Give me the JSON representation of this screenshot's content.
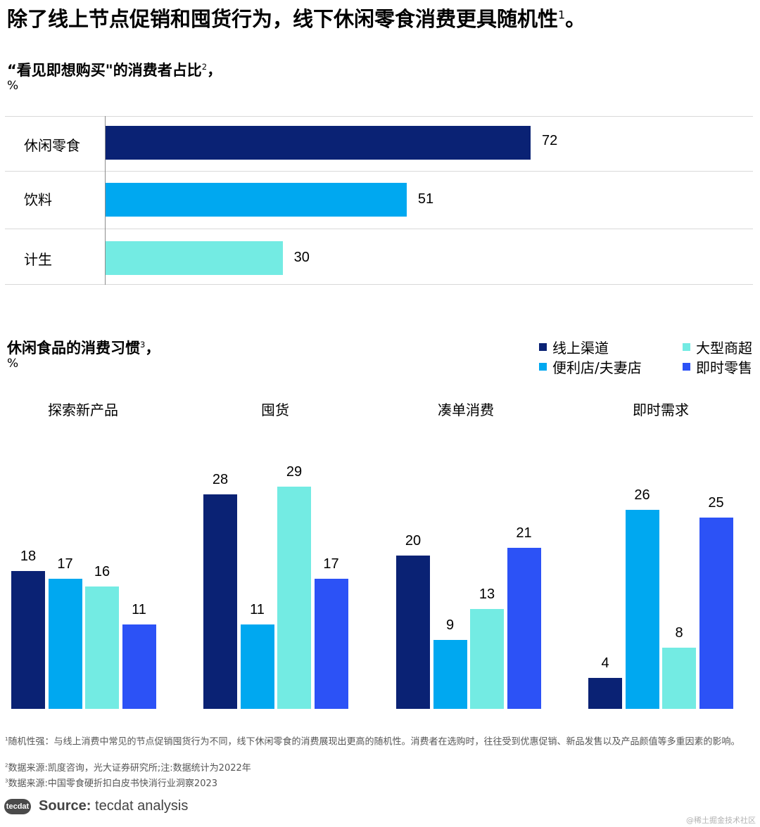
{
  "title": "除了线上节点促销和囤货行为，线下休闲零食消费更具随机性",
  "title_sup": "1",
  "title_end": "。",
  "colors": {
    "navy": "#0a2274",
    "cyan": "#00a8f0",
    "aqua": "#73ebe3",
    "blue": "#2c52f6"
  },
  "chart_data": [
    {
      "type": "bar",
      "orientation": "horizontal",
      "title": "“看见即想购买\"的消费者占比",
      "title_sup": "2",
      "title_end": "，",
      "unit": "%",
      "categories": [
        "休闲零食",
        "饮料",
        "计生"
      ],
      "values": [
        72,
        51,
        30
      ],
      "colors": [
        "#0a2274",
        "#00a8f0",
        "#73ebe3"
      ],
      "xlim": [
        0,
        110
      ]
    },
    {
      "type": "bar",
      "orientation": "vertical",
      "title": "休闲食品的消费习惯",
      "title_sup": "3",
      "title_end": "，",
      "unit": "%",
      "categories": [
        "探索新产品",
        "囤货",
        "凑单消费",
        "即时需求"
      ],
      "legend_position": "top-right",
      "series": [
        {
          "name": "线上渠道",
          "color": "#0a2274",
          "values": [
            18,
            28,
            20,
            4
          ]
        },
        {
          "name": "便利店/夫妻店",
          "color": "#00a8f0",
          "values": [
            17,
            11,
            9,
            26
          ]
        },
        {
          "name": "大型商超",
          "color": "#73ebe3",
          "values": [
            16,
            29,
            13,
            8
          ]
        },
        {
          "name": "即时零售",
          "color": "#2c52f6",
          "values": [
            11,
            17,
            21,
            25
          ]
        }
      ],
      "ylim": [
        0,
        30
      ]
    }
  ],
  "footnotes": {
    "n1_sup": "1",
    "n1": "随机性强：与线上消费中常见的节点促销囤货行为不同，线下休闲零食的消费展现出更高的随机性。消费者在选购时，往往受到优惠促销、新品发售以及产品颜值等多重因素的影响。",
    "n2_sup": "2",
    "n2": "数据来源:凯度咨询，光大证券研究所;注:数据统计为2022年",
    "n3_sup": "3",
    "n3": "数据来源:中国零食硬折扣白皮书快消行业洞察2023"
  },
  "logo_text": "tecdat",
  "source_label": "Source:",
  "source_text": "tecdat analysis",
  "watermark": "@稀土掘金技术社区"
}
